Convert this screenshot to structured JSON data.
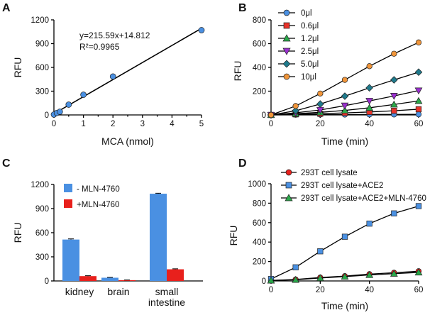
{
  "chart_data": [
    {
      "panel": "A",
      "type": "scatter",
      "xlabel": "MCA (nmol)",
      "ylabel": "RFU",
      "xlim": [
        0,
        5
      ],
      "ylim": [
        0,
        1200
      ],
      "xticks": [
        0,
        1,
        2,
        3,
        4,
        5
      ],
      "yticks": [
        0,
        300,
        600,
        900,
        1200
      ],
      "grid": false,
      "equation": "y=215.59x+14.812",
      "r_squared": "R²=0.9965",
      "fit": {
        "slope": 215.59,
        "intercept": 14.812,
        "x_range": [
          0,
          5
        ]
      },
      "series": [
        {
          "color": "#4a90e2",
          "marker": "circle",
          "x": [
            0,
            0.1,
            0.2,
            0.5,
            1,
            2,
            5
          ],
          "y": [
            5,
            25,
            40,
            130,
            255,
            485,
            1070
          ]
        }
      ]
    },
    {
      "panel": "B",
      "type": "line",
      "xlabel": "Time (min)",
      "ylabel": "RFU",
      "xlim": [
        0,
        60
      ],
      "ylim": [
        0,
        800
      ],
      "xticks": [
        0,
        20,
        40,
        60
      ],
      "yticks": [
        0,
        200,
        400,
        600,
        800
      ],
      "grid": false,
      "legend": "top-left",
      "x": [
        0,
        10,
        20,
        30,
        40,
        50,
        60
      ],
      "series": [
        {
          "name": "0μl",
          "color": "#4a90e2",
          "marker": "circle",
          "values": [
            0,
            2,
            3,
            3,
            4,
            4,
            5
          ]
        },
        {
          "name": "0.6μl",
          "color": "#e8332a",
          "marker": "square",
          "values": [
            0,
            5,
            10,
            17,
            25,
            35,
            48
          ]
        },
        {
          "name": "1.2μl",
          "color": "#2aa84a",
          "marker": "triangle-up",
          "values": [
            0,
            10,
            22,
            38,
            60,
            88,
            118
          ]
        },
        {
          "name": "2.5μl",
          "color": "#9b2fd0",
          "marker": "triangle-down",
          "values": [
            0,
            18,
            42,
            78,
            118,
            160,
            205
          ]
        },
        {
          "name": "5.0μl",
          "color": "#1f7a8c",
          "marker": "diamond",
          "values": [
            0,
            35,
            92,
            158,
            228,
            295,
            360
          ]
        },
        {
          "name": "10μl",
          "color": "#f0953a",
          "marker": "circle",
          "values": [
            0,
            75,
            180,
            295,
            410,
            515,
            610
          ]
        }
      ]
    },
    {
      "panel": "C",
      "type": "bar",
      "ylabel": "RFU",
      "ylim": [
        0,
        1200
      ],
      "yticks": [
        0,
        300,
        600,
        900,
        1200
      ],
      "grid": false,
      "legend": "top-left",
      "categories": [
        [
          "kidney"
        ],
        [
          "brain"
        ],
        [
          "small",
          "intestine"
        ]
      ],
      "series": [
        {
          "name": "- MLN-4760",
          "color": "#4a90e2",
          "values": [
            515,
            40,
            1085
          ],
          "errors": [
            8,
            4,
            6
          ]
        },
        {
          "name": "+MLN-4760",
          "color": "#e8201c",
          "values": [
            60,
            10,
            145
          ],
          "errors": [
            5,
            2,
            6
          ]
        }
      ]
    },
    {
      "panel": "D",
      "type": "line",
      "xlabel": "Time (min)",
      "ylabel": "RFU",
      "xlim": [
        0,
        60
      ],
      "ylim": [
        0,
        1000
      ],
      "xticks": [
        0,
        20,
        40,
        60
      ],
      "yticks": [
        0,
        200,
        400,
        600,
        800,
        1000
      ],
      "grid": false,
      "legend": "top-left",
      "x": [
        0,
        10,
        20,
        30,
        40,
        50,
        60
      ],
      "series": [
        {
          "name": "293T cell lysate",
          "color": "#e8201c",
          "marker": "circle",
          "values": [
            5,
            15,
            35,
            50,
            70,
            85,
            100
          ]
        },
        {
          "name": "293T cell lysate+ACE2",
          "color": "#4a90e2",
          "marker": "square",
          "values": [
            20,
            140,
            305,
            455,
            590,
            695,
            770
          ]
        },
        {
          "name": "293T cell lysate+ACE2+MLN-4760",
          "color": "#2aa84a",
          "marker": "triangle-up",
          "values": [
            5,
            12,
            30,
            45,
            62,
            75,
            88
          ]
        }
      ]
    }
  ]
}
